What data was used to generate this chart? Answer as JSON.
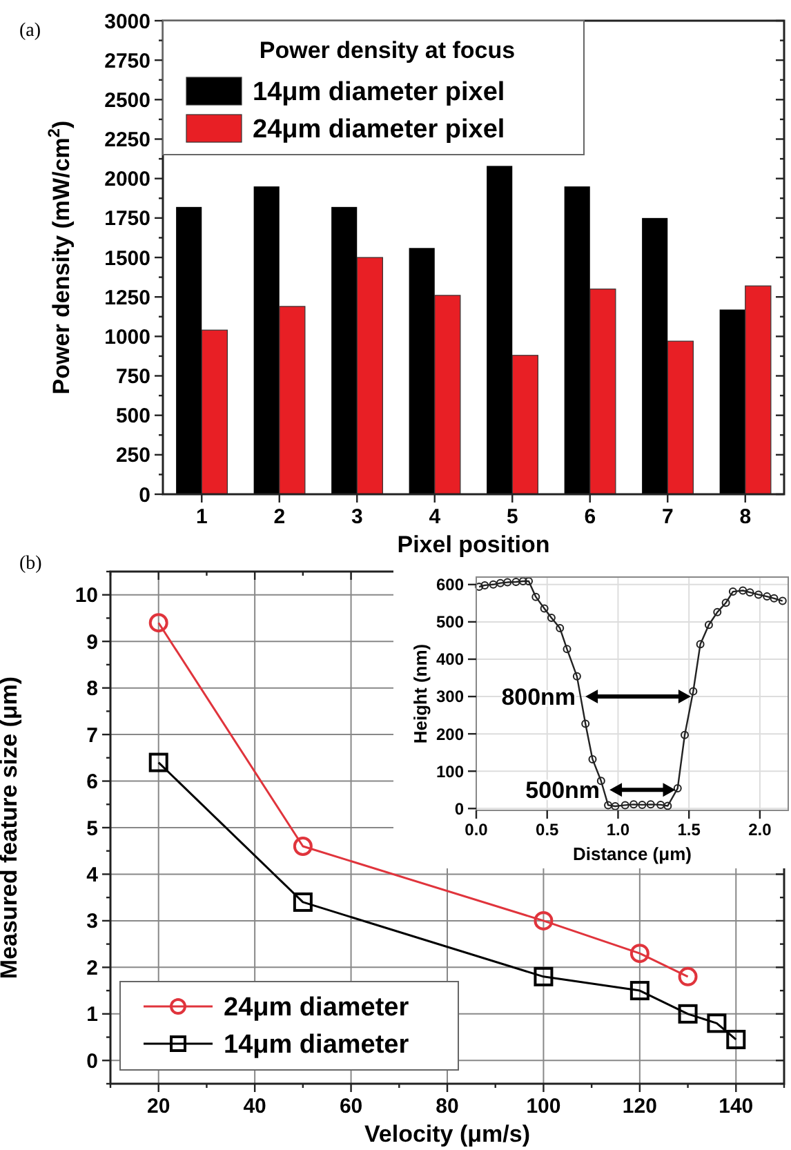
{
  "chart_data": [
    {
      "type": "bar",
      "title": "(a)",
      "categories": [
        "1",
        "2",
        "3",
        "4",
        "5",
        "6",
        "7",
        "8"
      ],
      "series": [
        {
          "name": "14μm diameter pixel",
          "color": "#000000",
          "values": [
            1820,
            1950,
            1820,
            1560,
            2080,
            1950,
            1750,
            1170
          ]
        },
        {
          "name": "24μm diameter pixel",
          "color": "#e81f25",
          "values": [
            1040,
            1190,
            1500,
            1260,
            880,
            1300,
            970,
            1320
          ]
        }
      ],
      "xlabel": "Pixel position",
      "ylabel": "Power density (mW/cm$^{2}$)",
      "ylim": [
        0,
        3000
      ],
      "yticks": [
        0,
        {
          "value": 125,
          "label": null
        },
        250,
        {
          "value": 375,
          "label": null
        },
        500,
        {
          "value": 625,
          "label": null
        },
        750,
        {
          "value": 875,
          "label": null
        },
        1000,
        {
          "value": 1125,
          "label": null
        },
        1250,
        {
          "value": 1375,
          "label": null
        },
        1500,
        {
          "value": 1625,
          "label": null
        },
        1750,
        {
          "value": 1875,
          "label": null
        },
        2000,
        {
          "value": 2125,
          "label": null
        },
        2250,
        {
          "value": 2375,
          "label": null
        },
        2500,
        {
          "value": 2625,
          "label": null
        },
        2750,
        {
          "value": 2875,
          "label": null
        },
        3000
      ],
      "legend": "top left",
      "legend_title": "Power density at focus"
    },
    {
      "type": "line",
      "title": "(b)",
      "xlabel": "Velocity (μm/s)",
      "ylabel": "Measured feature size (μm)",
      "xlim": [
        10,
        150
      ],
      "xticks": [
        {
          "value": 10,
          "label": null
        },
        20,
        {
          "value": 30,
          "label": null
        },
        40,
        {
          "value": 50,
          "label": null
        },
        60,
        {
          "value": 70,
          "label": null
        },
        80,
        {
          "value": 90,
          "label": null
        },
        100,
        {
          "value": 110,
          "label": null
        },
        120,
        {
          "value": 130,
          "label": null
        },
        140,
        {
          "value": 150,
          "label": null
        }
      ],
      "ylim": [
        -0.5,
        10.5
      ],
      "yticks": [
        {
          "value": -0.5,
          "label": null
        },
        0,
        {
          "value": 0.5,
          "label": null
        },
        1,
        {
          "value": 1.5,
          "label": null
        },
        2,
        {
          "value": 2.5,
          "label": null
        },
        3,
        {
          "value": 3.5,
          "label": null
        },
        4,
        {
          "value": 4.5,
          "label": null
        },
        5,
        {
          "value": 5.5,
          "label": null
        },
        6,
        {
          "value": 6.5,
          "label": null
        },
        7,
        {
          "value": 7.5,
          "label": null
        },
        8,
        {
          "value": 8.5,
          "label": null
        },
        9,
        {
          "value": 9.5,
          "label": null
        },
        10,
        {
          "value": 10.5,
          "label": null
        }
      ],
      "grid": true,
      "legend": "bottom left",
      "series": [
        {
          "name": "24μm diameter",
          "color": "#e0343c",
          "marker": "circle",
          "x": [
            20,
            50,
            100,
            120,
            130
          ],
          "values": [
            9.4,
            4.6,
            3.0,
            2.3,
            1.8
          ]
        },
        {
          "name": "14μm diameter",
          "color": "#000000",
          "marker": "square",
          "x": [
            20,
            50,
            100,
            120,
            130,
            136,
            140
          ],
          "values": [
            6.4,
            3.4,
            1.8,
            1.5,
            1.0,
            0.8,
            0.45
          ]
        }
      ]
    },
    {
      "type": "line",
      "xlabel": "Distance (μm)",
      "ylabel": "Height (nm)",
      "xlim": [
        0,
        2.2
      ],
      "xticks": [
        {
          "value": 0,
          "label": "0.0"
        },
        {
          "value": 0.5,
          "label": "0.5"
        },
        {
          "value": 1,
          "label": "1.0"
        },
        {
          "value": 1.5,
          "label": "1.5"
        },
        {
          "value": 2,
          "label": "2.0"
        }
      ],
      "ylim": [
        -5,
        620
      ],
      "yticks": [
        0,
        100,
        200,
        300,
        400,
        500,
        600
      ],
      "grid": true,
      "series": [
        {
          "color": "#222222",
          "marker": "circle",
          "x": [
            0.02,
            0.06,
            0.12,
            0.17,
            0.22,
            0.28,
            0.33,
            0.37,
            0.42,
            0.48,
            0.53,
            0.59,
            0.64,
            0.71,
            0.77,
            0.82,
            0.88,
            0.93,
            0.98,
            1.05,
            1.11,
            1.17,
            1.23,
            1.3,
            1.35,
            1.42,
            1.47,
            1.53,
            1.58,
            1.64,
            1.7,
            1.76,
            1.81,
            1.88,
            1.93,
            1.99,
            2.05,
            2.1,
            2.16
          ],
          "values": [
            594,
            598,
            600,
            604,
            606,
            607,
            609,
            609,
            567,
            536,
            511,
            483,
            427,
            354,
            227,
            132,
            74,
            9,
            6,
            9,
            11,
            10,
            11,
            10,
            7,
            54,
            197,
            314,
            440,
            492,
            526,
            551,
            581,
            584,
            579,
            573,
            568,
            563,
            556
          ]
        }
      ],
      "annotations": [
        {
          "text": "800nm",
          "x": 0.76,
          "y": 300
        },
        {
          "text": "500nm",
          "x": 0.93,
          "y": 50
        }
      ]
    }
  ]
}
